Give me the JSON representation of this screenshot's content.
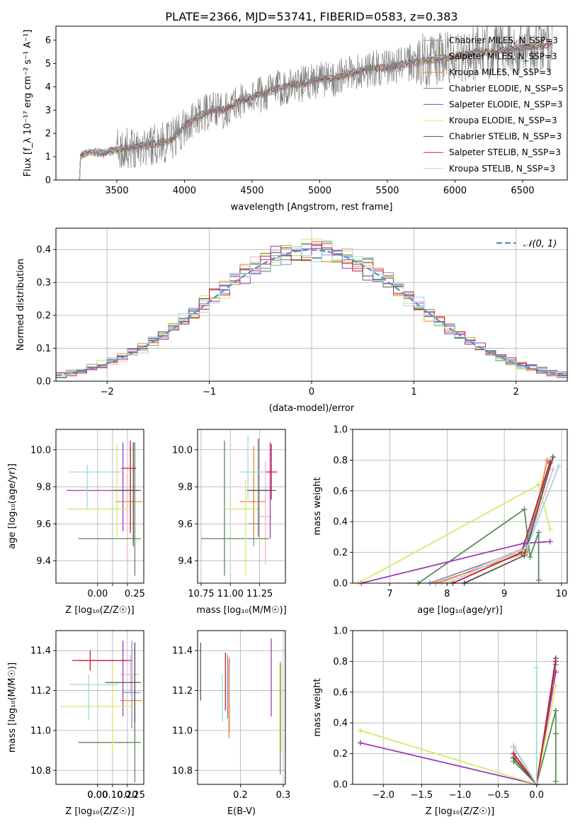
{
  "figure_title": "PLATE=2366, MJD=53741, FIBERID=0583, z=0.383",
  "colors": {
    "Chabrier MILES": "#7b93c9",
    "Salpeter MILES": "#f2b3c9",
    "Kroupa MILES": "#f08a2a",
    "Chabrier ELODIE": "#5a8a5a",
    "Salpeter ELODIE": "#a13bb8",
    "Kroupa ELODIE": "#d8e86a",
    "Chabrier STELIB": "#555555",
    "Salpeter STELIB": "#c8202f",
    "Kroupa STELIB": "#9fd8dc",
    "observed": "#808080",
    "gaussian": "#5b8ed6"
  },
  "chart_data": [
    {
      "type": "line",
      "panel": "spectrum",
      "title": "PLATE=2366, MJD=53741, FIBERID=0583, z=0.383",
      "xlabel": "wavelength [Angstrom, rest frame]",
      "ylabel": "Flux [f_λ 10⁻¹⁷ erg cm⁻² s⁻¹ A⁻¹]",
      "xlim": [
        3050,
        6830
      ],
      "ylim": [
        0,
        6.6
      ],
      "xticks": [
        3500,
        4000,
        4500,
        5000,
        5500,
        6000,
        6500
      ],
      "yticks": [
        0,
        1,
        2,
        3,
        4,
        5,
        6
      ],
      "continuum": {
        "x": [
          3200,
          3300,
          3400,
          3500,
          3600,
          3700,
          3800,
          3900,
          4000,
          4100,
          4200,
          4300,
          4400,
          4500,
          4600,
          4700,
          4800,
          4900,
          5000,
          5100,
          5200,
          5300,
          5400,
          5500,
          5600,
          5700,
          5800,
          5900,
          6000,
          6100,
          6200,
          6300,
          6400,
          6500,
          6600,
          6700
        ],
        "y": [
          0.95,
          1.2,
          1.15,
          1.3,
          1.4,
          1.5,
          1.55,
          1.7,
          2.3,
          2.7,
          3.0,
          3.0,
          3.35,
          3.55,
          3.75,
          3.95,
          4.1,
          4.15,
          4.35,
          4.35,
          4.5,
          4.7,
          4.8,
          4.8,
          4.95,
          5.05,
          5.15,
          5.2,
          5.3,
          5.4,
          5.5,
          5.5,
          5.6,
          5.65,
          5.75,
          5.8
        ]
      },
      "legend": [
        "Chabrier MILES, N_SSP=3",
        "Salpeter MILES, N_SSP=3",
        "Kroupa MILES, N_SSP=3",
        "Chabrier ELODIE, N_SSP=5",
        "Salpeter ELODIE, N_SSP=3",
        "Kroupa ELODIE, N_SSP=3",
        "Chabrier STELIB, N_SSP=3",
        "Salpeter STELIB, N_SSP=3",
        "Kroupa STELIB, N_SSP=3"
      ],
      "legend_loc": "upper right",
      "grid": false
    },
    {
      "type": "step",
      "panel": "residual histogram",
      "xlabel": "(data-model)/error",
      "ylabel": "Normed distribution",
      "xlim": [
        -2.5,
        2.5
      ],
      "ylim": [
        0,
        0.465
      ],
      "xticks": [
        -2,
        -1,
        0,
        1,
        2
      ],
      "yticks": [
        0.0,
        0.1,
        0.2,
        0.3,
        0.4
      ],
      "bin_width": 0.1,
      "gaussian_label": "𝒩(0, 1)",
      "grid": true
    },
    {
      "type": "errorbar",
      "panel": "age vs Z",
      "xlabel": "Z [log₁₀(Z/Z☉)]",
      "ylabel": "age  [log₁₀(age/yr)]",
      "xlim": [
        -0.28,
        0.31
      ],
      "ylim": [
        9.28,
        10.11
      ],
      "xticks": [
        0.0,
        0.1,
        0.2
      ],
      "xticklabels": [
        "0.00",
        "0.25"
      ],
      "yticks": [
        9.4,
        9.6,
        9.8,
        10.0
      ],
      "points": [
        {
          "model": "Chabrier MILES",
          "x": 0.22,
          "y": 9.78,
          "xerr": [
            0.12,
            0.03
          ],
          "yerr": [
            0.22,
            0.24
          ]
        },
        {
          "model": "Salpeter MILES",
          "x": 0.2,
          "y": 9.6,
          "xerr": [
            0.05,
            0.05
          ],
          "yerr": [
            0.22,
            0.3
          ]
        },
        {
          "model": "Kroupa MILES",
          "x": 0.24,
          "y": 9.72,
          "xerr": [
            0.12,
            0.06
          ],
          "yerr": [
            0.2,
            0.3
          ]
        },
        {
          "model": "Chabrier ELODIE",
          "x": 0.25,
          "y": 9.52,
          "xerr": [
            0.38,
            0.04
          ],
          "yerr": [
            0.2,
            0.52
          ]
        },
        {
          "model": "Salpeter ELODIE",
          "x": 0.17,
          "y": 9.78,
          "xerr": [
            0.38,
            0.1
          ],
          "yerr": [
            0.22,
            0.26
          ]
        },
        {
          "model": "Kroupa ELODIE",
          "x": 0.13,
          "y": 9.68,
          "xerr": [
            0.33,
            0.08
          ],
          "yerr": [
            0.15,
            0.35
          ]
        },
        {
          "model": "Chabrier STELIB",
          "x": 0.24,
          "y": 9.78,
          "xerr": [
            0.13,
            0.05
          ],
          "yerr": [
            0.3,
            0.26
          ]
        },
        {
          "model": "Salpeter STELIB",
          "x": 0.22,
          "y": 9.9,
          "xerr": [
            0.06,
            0.04
          ],
          "yerr": [
            0.35,
            0.15
          ]
        },
        {
          "model": "Kroupa STELIB",
          "x": -0.07,
          "y": 9.88,
          "xerr": [
            0.12,
            0.25
          ],
          "yerr": [
            0.2,
            0.04
          ]
        }
      ],
      "grid": true
    },
    {
      "type": "errorbar",
      "panel": "age vs mass",
      "xlabel": "mass [log₁₀(M/M☉)]",
      "ylabel": "",
      "xlim": [
        10.72,
        11.47
      ],
      "ylim": [
        9.28,
        10.11
      ],
      "xticks": [
        10.75,
        11.0,
        11.25
      ],
      "yticks": [
        9.4,
        9.6,
        9.8,
        10.0
      ],
      "points": [
        {
          "model": "Chabrier MILES",
          "x": 11.2,
          "y": 9.6,
          "xerr": [
            0.05,
            0.05
          ],
          "yerr": [
            0.12,
            0.25
          ]
        },
        {
          "model": "Salpeter MILES",
          "x": 11.3,
          "y": 9.64,
          "xerr": [
            0.05,
            0.05
          ],
          "yerr": [
            0.26,
            0.3
          ]
        },
        {
          "model": "Kroupa MILES",
          "x": 11.2,
          "y": 9.72,
          "xerr": [
            0.12,
            0.1
          ],
          "yerr": [
            0.2,
            0.3
          ]
        },
        {
          "model": "Chabrier ELODIE",
          "x": 10.95,
          "y": 9.52,
          "xerr": [
            0.2,
            0.38
          ],
          "yerr": [
            0.2,
            0.53
          ]
        },
        {
          "model": "Salpeter ELODIE",
          "x": 11.34,
          "y": 9.78,
          "xerr": [
            0.18,
            0.05
          ],
          "yerr": [
            0.26,
            0.26
          ]
        },
        {
          "model": "Kroupa ELODIE",
          "x": 11.13,
          "y": 9.68,
          "xerr": [
            0.17,
            0.12
          ],
          "yerr": [
            0.36,
            0.16
          ]
        },
        {
          "model": "Chabrier STELIB",
          "x": 11.24,
          "y": 9.78,
          "xerr": [
            0.1,
            0.12
          ],
          "yerr": [
            0.25,
            0.28
          ]
        },
        {
          "model": "Salpeter STELIB",
          "x": 11.35,
          "y": 9.88,
          "xerr": [
            0.05,
            0.05
          ],
          "yerr": [
            0.15,
            0.15
          ]
        },
        {
          "model": "Kroupa STELIB",
          "x": 11.15,
          "y": 9.88,
          "xerr": [
            0.07,
            0.15
          ],
          "yerr": [
            0.15,
            0.2
          ]
        }
      ],
      "grid": true
    },
    {
      "type": "line",
      "panel": "mass weight vs age",
      "xlabel": "age  [log₁₀(age/yr)]",
      "ylabel": "mass weight",
      "xlim": [
        6.35,
        10.1
      ],
      "ylim": [
        0,
        1.0
      ],
      "xticks": [
        7,
        8,
        9,
        10
      ],
      "yticks": [
        0.0,
        0.2,
        0.4,
        0.6,
        0.8,
        1.0
      ],
      "series": [
        {
          "model": "Chabrier MILES",
          "x": [
            7.7,
            9.35,
            9.8
          ],
          "y": [
            0.0,
            0.22,
            0.78
          ]
        },
        {
          "model": "Salpeter MILES",
          "x": [
            7.9,
            9.4,
            9.85
          ],
          "y": [
            0.0,
            0.24,
            0.74
          ]
        },
        {
          "model": "Kroupa MILES",
          "x": [
            7.8,
            9.4,
            9.75
          ],
          "y": [
            0.0,
            0.2,
            0.8
          ]
        },
        {
          "model": "Chabrier ELODIE",
          "x": [
            7.5,
            9.35,
            9.45,
            9.6,
            9.6
          ],
          "y": [
            0.0,
            0.48,
            0.17,
            0.33,
            0.02
          ]
        },
        {
          "model": "Salpeter ELODIE",
          "x": [
            6.5,
            9.35,
            9.8
          ],
          "y": [
            0.0,
            0.26,
            0.27
          ]
        },
        {
          "model": "Kroupa ELODIE",
          "x": [
            6.45,
            9.6,
            9.8
          ],
          "y": [
            0.0,
            0.64,
            0.35
          ]
        },
        {
          "model": "Chabrier STELIB",
          "x": [
            8.3,
            9.35,
            9.85
          ],
          "y": [
            0.0,
            0.18,
            0.82
          ]
        },
        {
          "model": "Salpeter STELIB",
          "x": [
            8.1,
            9.3,
            9.8
          ],
          "y": [
            0.0,
            0.2,
            0.79
          ]
        },
        {
          "model": "Kroupa STELIB",
          "x": [
            8.0,
            9.4,
            9.95
          ],
          "y": [
            0.0,
            0.23,
            0.76
          ]
        }
      ],
      "grid": true
    },
    {
      "type": "errorbar",
      "panel": "mass vs Z",
      "xlabel": "Z [log₁₀(Z/Z☉)]",
      "ylabel": "mass [log₁₀(M/M☉)]",
      "xlim": [
        -0.28,
        0.31
      ],
      "ylim": [
        10.73,
        11.5
      ],
      "xticks": [
        0.0,
        0.1,
        0.2
      ],
      "yticks": [
        10.8,
        11.0,
        11.2,
        11.4
      ],
      "points": [
        {
          "model": "Chabrier MILES",
          "x": 0.23,
          "y": 11.19,
          "xerr": [
            0.06,
            0.06
          ],
          "yerr": [
            0.18,
            0.26
          ]
        },
        {
          "model": "Salpeter MILES",
          "x": 0.22,
          "y": 11.28,
          "xerr": [
            0.07,
            0.06
          ],
          "yerr": [
            0.1,
            0.1
          ]
        },
        {
          "model": "Kroupa MILES",
          "x": 0.25,
          "y": 11.15,
          "xerr": [
            0.1,
            0.05
          ],
          "yerr": [
            0.18,
            0.26
          ]
        },
        {
          "model": "Chabrier ELODIE",
          "x": 0.25,
          "y": 10.94,
          "xerr": [
            0.38,
            0.04
          ],
          "yerr": [
            0.2,
            0.5
          ]
        },
        {
          "model": "Salpeter ELODIE",
          "x": 0.17,
          "y": 11.35,
          "xerr": [
            0.3,
            0.06
          ],
          "yerr": [
            0.28,
            0.1
          ]
        },
        {
          "model": "Kroupa ELODIE",
          "x": 0.1,
          "y": 11.12,
          "xerr": [
            0.35,
            0.14
          ],
          "yerr": [
            0.24,
            0.22
          ]
        },
        {
          "model": "Chabrier STELIB",
          "x": 0.25,
          "y": 11.24,
          "xerr": [
            0.2,
            0.04
          ],
          "yerr": [
            0.2,
            0.2
          ]
        },
        {
          "model": "Salpeter STELIB",
          "x": -0.05,
          "y": 11.35,
          "xerr": [
            0.12,
            0.25
          ],
          "yerr": [
            0.05,
            0.05
          ]
        },
        {
          "model": "Kroupa STELIB",
          "x": -0.06,
          "y": 11.23,
          "xerr": [
            0.13,
            0.2
          ],
          "yerr": [
            0.18,
            0.05
          ]
        }
      ],
      "grid": true
    },
    {
      "type": "errorbar",
      "panel": "mass vs E(B-V)",
      "xlabel": "E(B-V)",
      "ylabel": "",
      "xlim": [
        0.1,
        0.305
      ],
      "ylim": [
        10.73,
        11.5
      ],
      "xticks": [
        0.2,
        0.3
      ],
      "yticks": [
        10.8,
        11.0,
        11.2,
        11.4
      ],
      "points": [
        {
          "model": "Chabrier MILES",
          "x": 0.17,
          "y": 11.22,
          "xerr": [
            0,
            0
          ],
          "yerr": [
            0.16,
            0.16
          ]
        },
        {
          "model": "Salpeter MILES",
          "x": 0.175,
          "y": 11.19,
          "xerr": [
            0,
            0
          ],
          "yerr": [
            0.2,
            0.18
          ]
        },
        {
          "model": "Kroupa MILES",
          "x": 0.173,
          "y": 11.16,
          "xerr": [
            0,
            0
          ],
          "yerr": [
            0.2,
            0.2
          ]
        },
        {
          "model": "Chabrier ELODIE",
          "x": 0.293,
          "y": 11.01,
          "xerr": [
            0,
            0
          ],
          "yerr": [
            0.23,
            0.33
          ]
        },
        {
          "model": "Salpeter ELODIE",
          "x": 0.272,
          "y": 11.27,
          "xerr": [
            0,
            0
          ],
          "yerr": [
            0.2,
            0.19
          ]
        },
        {
          "model": "Kroupa ELODIE",
          "x": 0.295,
          "y": 11.11,
          "xerr": [
            0,
            0
          ],
          "yerr": [
            0.22,
            0.24
          ]
        },
        {
          "model": "Chabrier STELIB",
          "x": 0.107,
          "y": 11.3,
          "xerr": [
            0,
            0
          ],
          "yerr": [
            0.15,
            0.14
          ]
        },
        {
          "model": "Salpeter STELIB",
          "x": 0.165,
          "y": 11.27,
          "xerr": [
            0,
            0
          ],
          "yerr": [
            0.17,
            0.12
          ]
        },
        {
          "model": "Kroupa STELIB",
          "x": 0.158,
          "y": 11.16,
          "xerr": [
            0,
            0
          ],
          "yerr": [
            0.12,
            0.12
          ]
        }
      ],
      "grid": true
    },
    {
      "type": "line",
      "panel": "mass weight vs Z",
      "xlabel": "Z [log₁₀(Z/Z☉)]",
      "ylabel": "mass weight",
      "xlim": [
        -2.4,
        0.4
      ],
      "ylim": [
        0,
        1.0
      ],
      "xticks": [
        -2.0,
        -1.5,
        -1.0,
        -0.5,
        0.0
      ],
      "yticks": [
        0.0,
        0.2,
        0.4,
        0.6,
        0.8,
        1.0
      ],
      "series": [
        {
          "model": "Chabrier MILES",
          "x": [
            -0.3,
            0.0,
            0.25
          ],
          "y": [
            0.2,
            0.0,
            0.78
          ]
        },
        {
          "model": "Salpeter MILES",
          "x": [
            -0.3,
            0.0,
            0.25
          ],
          "y": [
            0.25,
            0.0,
            0.74
          ]
        },
        {
          "model": "Kroupa MILES",
          "x": [
            -0.3,
            0.0,
            0.25
          ],
          "y": [
            0.18,
            0.0,
            0.8
          ]
        },
        {
          "model": "Chabrier ELODIE",
          "x": [
            -0.3,
            0.0,
            0.25,
            0.25,
            0.25
          ],
          "y": [
            0.15,
            0.0,
            0.48,
            0.33,
            0.02
          ]
        },
        {
          "model": "Salpeter ELODIE",
          "x": [
            -2.3,
            0.0,
            0.25
          ],
          "y": [
            0.27,
            0.0,
            0.73
          ]
        },
        {
          "model": "Kroupa ELODIE",
          "x": [
            -2.3,
            0.0,
            0.25
          ],
          "y": [
            0.35,
            0.0,
            0.64
          ]
        },
        {
          "model": "Chabrier STELIB",
          "x": [
            -0.3,
            0.0,
            0.25
          ],
          "y": [
            0.17,
            0.0,
            0.82
          ]
        },
        {
          "model": "Salpeter STELIB",
          "x": [
            -0.3,
            0.0,
            0.25
          ],
          "y": [
            0.2,
            0.0,
            0.8
          ]
        },
        {
          "model": "Kroupa STELIB",
          "x": [
            -0.3,
            0.0,
            0.0
          ],
          "y": [
            0.24,
            0.0,
            0.76
          ]
        }
      ],
      "grid": true
    }
  ]
}
